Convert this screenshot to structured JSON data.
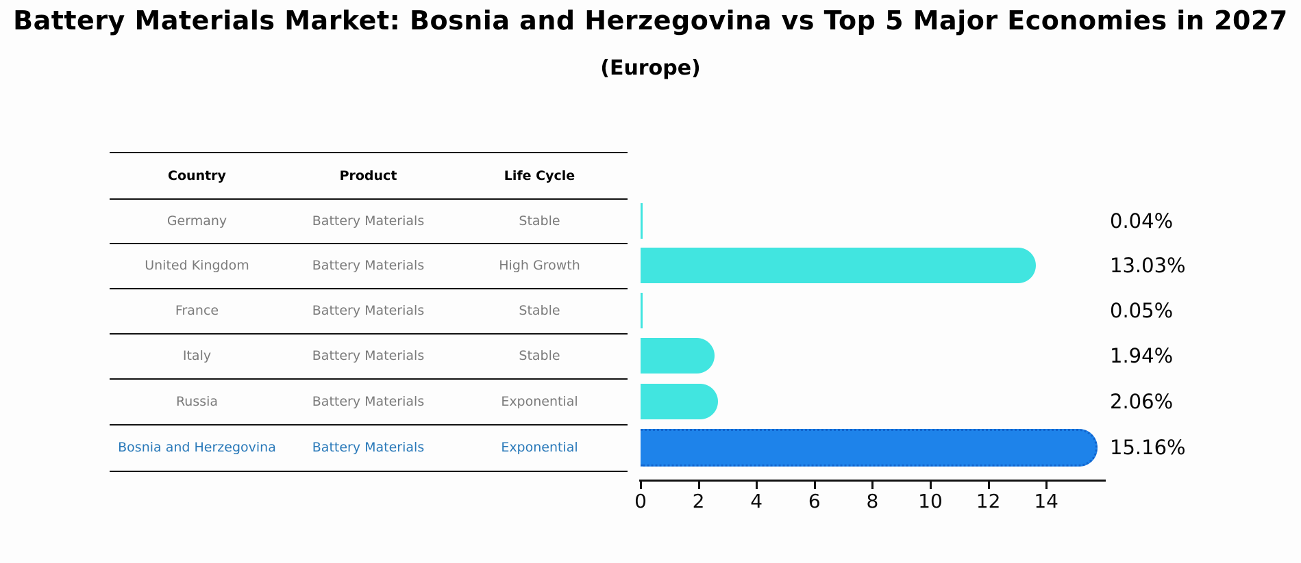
{
  "title": "Battery Materials Market: Bosnia and Herzegovina vs Top 5 Major Economies in 2027",
  "subtitle": "(Europe)",
  "table": {
    "headers": [
      "Country",
      "Product",
      "Life Cycle"
    ],
    "rows": [
      {
        "country": "Germany",
        "product": "Battery Materials",
        "life_cycle": "Stable"
      },
      {
        "country": "United Kingdom",
        "product": "Battery Materials",
        "life_cycle": "High Growth"
      },
      {
        "country": "France",
        "product": "Battery Materials",
        "life_cycle": "Stable"
      },
      {
        "country": "Italy",
        "product": "Battery Materials",
        "life_cycle": "Stable"
      },
      {
        "country": "Russia",
        "product": "Battery Materials",
        "life_cycle": "Exponential"
      },
      {
        "country": "Bosnia and Herzegovina",
        "product": "Battery Materials",
        "life_cycle": "Exponential"
      }
    ]
  },
  "chart_data": {
    "type": "bar",
    "orientation": "horizontal",
    "title": "Battery Materials Market: Bosnia and Herzegovina vs Top 5 Major Economies in 2027",
    "subtitle": "(Europe)",
    "categories": [
      "Germany",
      "United Kingdom",
      "France",
      "Italy",
      "Russia",
      "Bosnia and Herzegovina"
    ],
    "values": [
      0.04,
      13.03,
      0.05,
      1.94,
      2.06,
      15.16
    ],
    "value_labels": [
      "0.04%",
      "13.03%",
      "0.05%",
      "1.94%",
      "2.06%",
      "15.16%"
    ],
    "x_ticks": [
      "0",
      "2",
      "4",
      "6",
      "8",
      "10",
      "12",
      "14"
    ],
    "x_tick_values": [
      0,
      2,
      4,
      6,
      8,
      10,
      12,
      14
    ],
    "xlim": [
      0,
      16
    ],
    "grid": false,
    "legend": false,
    "bar_color": "#41e5e0",
    "highlight_color": "#1e83ea",
    "highlight_border_color": "#1063cc",
    "highlight_index": 5,
    "highlight_text_color": "#2979b9"
  }
}
